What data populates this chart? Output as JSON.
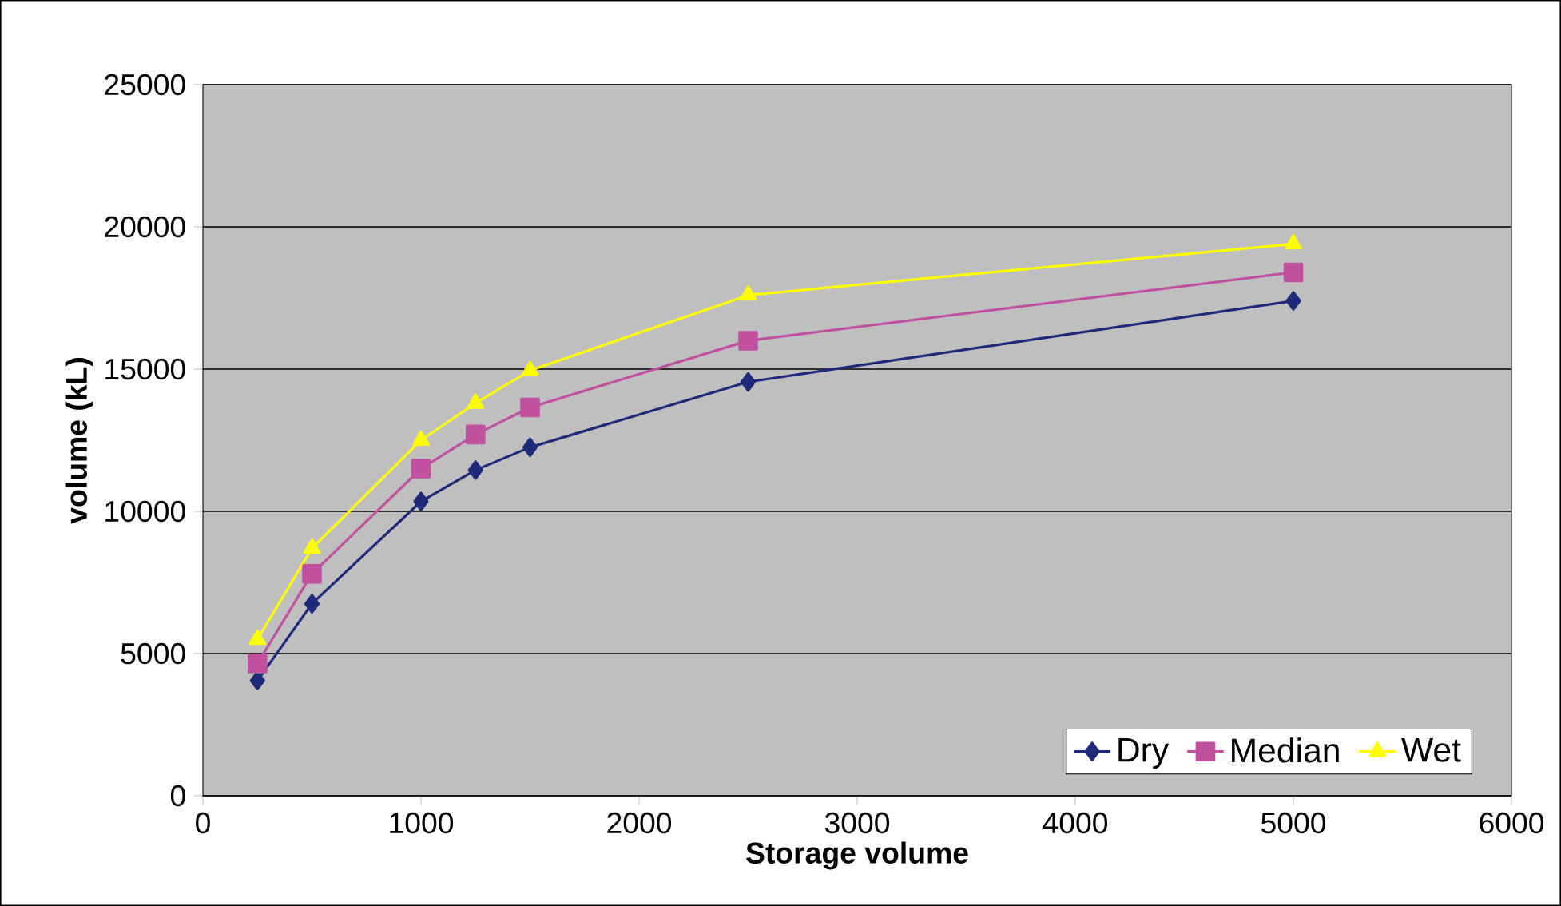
{
  "chart_data": {
    "type": "line",
    "xlabel": "Storage volume",
    "ylabel": "volume (kL)",
    "xlim": [
      0,
      6000
    ],
    "xticks": [
      0,
      1000,
      2000,
      3000,
      4000,
      5000,
      6000
    ],
    "ylim": [
      0,
      25000
    ],
    "yticks": [
      0,
      5000,
      10000,
      15000,
      20000,
      25000
    ],
    "grid": "y",
    "legend": "bottom right",
    "x": [
      250,
      500,
      1000,
      1250,
      1500,
      2500,
      5000
    ],
    "series": [
      {
        "name": "Dry",
        "color": "#1f2a7a",
        "marker": "diamond",
        "values": [
          4050,
          6750,
          10350,
          11450,
          12250,
          14550,
          17400
        ]
      },
      {
        "name": "Median",
        "color": "#c050a0",
        "marker": "square",
        "values": [
          4650,
          7800,
          11500,
          12700,
          13650,
          16000,
          18400
        ]
      },
      {
        "name": "Wet",
        "color": "#ffff00",
        "marker": "triangle",
        "values": [
          5500,
          8700,
          12500,
          13800,
          14950,
          17600,
          19400
        ]
      }
    ]
  }
}
